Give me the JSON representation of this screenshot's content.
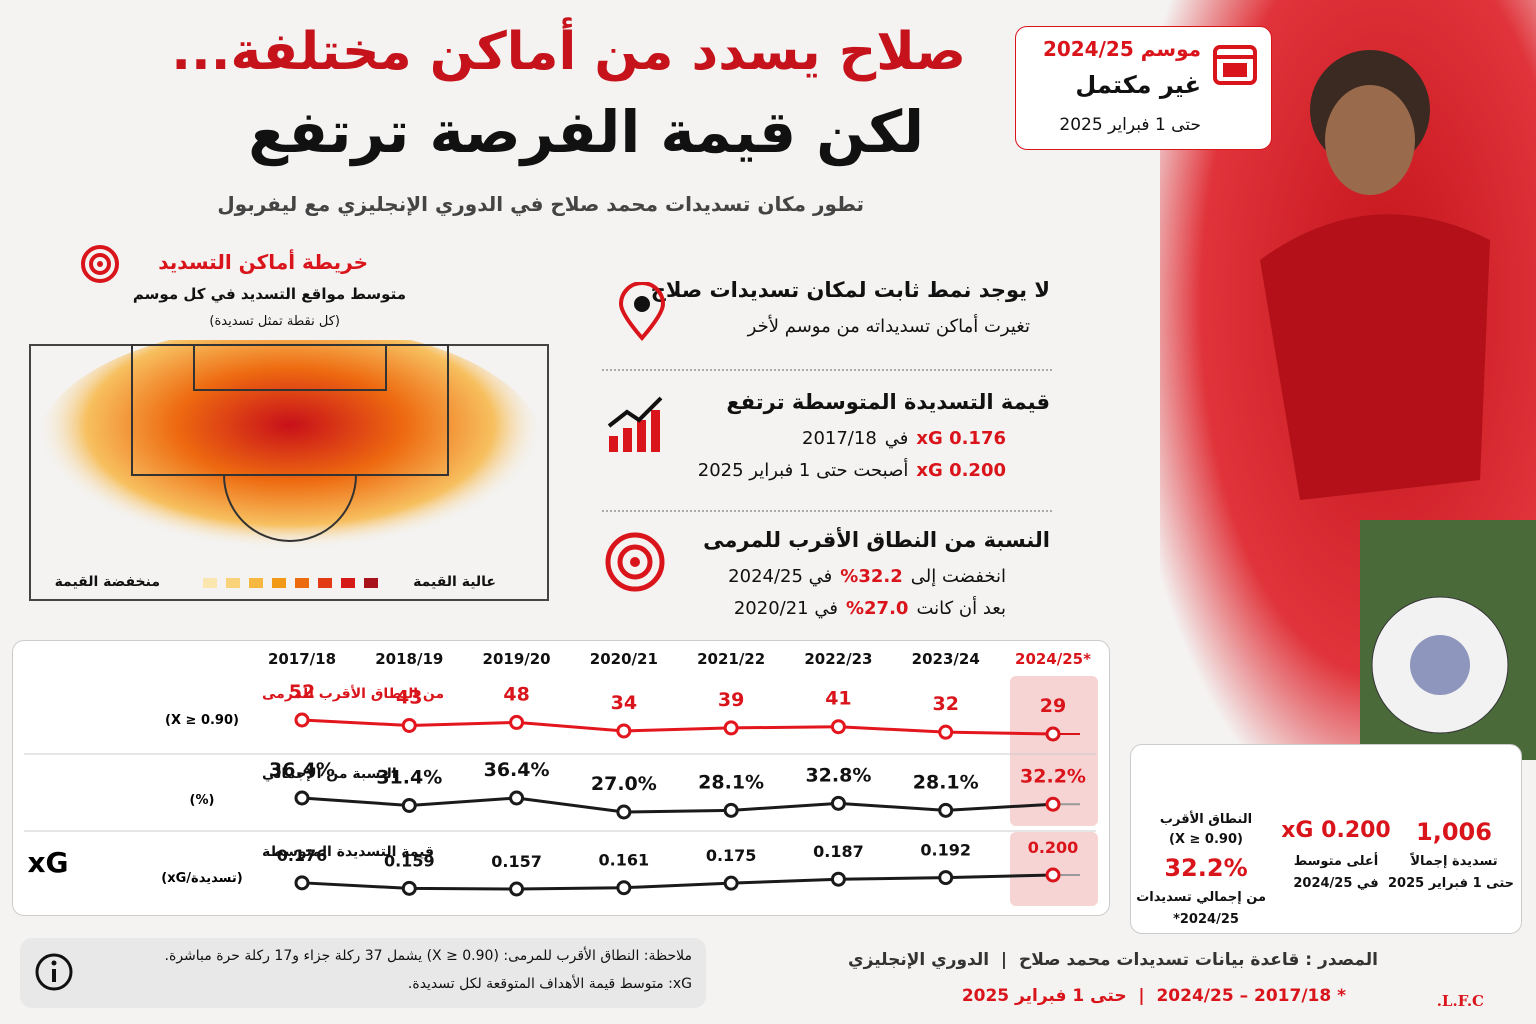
{
  "header": {
    "title_line1": "صلاح يسدد من أماكن مختلفة...",
    "title_line2": "لكن قيمة الفرصة ترتفع",
    "subtitle": "تطور مكان تسديدات محمد صلاح في الدوري الإنجليزي مع ليفربول"
  },
  "season_box": {
    "label": "موسم",
    "season": "2024/25",
    "status": "غير مكتمل",
    "until": "حتى 1 فبراير 2025"
  },
  "shot_map": {
    "title": "خريطة أماكن التسديد",
    "subtitle": "متوسط مواقع التسديد في كل موسم",
    "note": "(كل نقطة تمثل تسديدة)",
    "legend_high": "عالية القيمة",
    "legend_low": "منخفضة القيمة"
  },
  "insights": [
    {
      "title": "لا يوجد نمط ثابت لمكان تسديدات صلاح",
      "lines": [
        [
          {
            "text": "تغيرت أماكن تسديداته من موسم لأخر",
            "highlight": false
          }
        ]
      ]
    },
    {
      "title": "قيمة التسديدة المتوسطة ترتفع",
      "lines": [
        [
          {
            "text": "0.176 xG",
            "highlight": true
          },
          {
            "text": "في",
            "highlight": false
          },
          {
            "text": "2017/18",
            "highlight": false
          }
        ],
        [
          {
            "text": "0.200 xG",
            "highlight": true
          },
          {
            "text": "أصبحت حتى 1 فبراير 2025",
            "highlight": false
          }
        ]
      ]
    },
    {
      "title": "النسبة من النطاق الأقرب للمرمى",
      "lines": [
        [
          {
            "text": "انخفضت إلى",
            "highlight": false
          },
          {
            "text": "32.2%",
            "highlight": true
          },
          {
            "text": "في 2024/25",
            "highlight": false
          }
        ],
        [
          {
            "text": "بعد أن كانت",
            "highlight": false
          },
          {
            "text": "27.0%",
            "highlight": true
          },
          {
            "text": "في 2020/21",
            "highlight": false
          }
        ]
      ]
    }
  ],
  "chart_data": [
    {
      "type": "line",
      "title": "من النطاق الأقرب للمرمى",
      "subtitle": "(X ≥ 0.90)",
      "categories": [
        "2017/18",
        "2018/19",
        "2019/20",
        "2020/21",
        "2021/22",
        "2022/23",
        "2023/24",
        "2024/25*"
      ],
      "values": [
        52,
        43,
        48,
        34,
        39,
        41,
        32,
        29
      ],
      "color": "#e3161d"
    },
    {
      "type": "line",
      "title": "النسبة من الإجمالي",
      "subtitle": "(%)",
      "values": [
        36.4,
        31.4,
        36.4,
        27.0,
        28.1,
        32.8,
        28.1,
        32.2
      ],
      "value_labels": [
        "36.4%",
        "31.4%",
        "36.4%",
        "27.0%",
        "28.1%",
        "32.8%",
        "28.1%",
        "32.2%"
      ],
      "color": "#1a1a1a"
    },
    {
      "type": "line",
      "title": "قيمة التسديدة المتوسطة",
      "subtitle": "(xG/تسديدة)",
      "icon_text": "xG",
      "values": [
        0.176,
        0.159,
        0.157,
        0.161,
        0.175,
        0.187,
        0.192,
        0.2
      ],
      "value_labels": [
        "0.176",
        "0.159",
        "0.157",
        "0.161",
        "0.175",
        "0.187",
        "0.192",
        "0.200"
      ],
      "color": "#1a1a1a"
    }
  ],
  "stats": [
    {
      "value": "1,006",
      "lines": [
        "تسديدة إجمالاً",
        "حتى 1 فبراير 2025"
      ]
    },
    {
      "value": "0.200 xG",
      "lines": [
        "أعلى متوسط",
        "في 2024/25"
      ]
    },
    {
      "value": "32.2%",
      "heading": [
        "النطاق الأقرب",
        "(X ≥ 0.90)"
      ],
      "lines": [
        "من إجمالي تسديدات",
        "2024/25*"
      ]
    }
  ],
  "footer": {
    "note_lines": [
      "ملاحظة: النطاق الأقرب للمرمى: (X ≥ 0.90) يشمل 37 ركلة جزاء و17 ركلة حرة مباشرة.",
      "xG: متوسط قيمة الأهداف المتوقعة لكل تسديدة."
    ],
    "source": "المصدر : قاعدة بيانات تسديدات محمد صلاح",
    "league": "الدوري الإنجليزي",
    "period": "* 2017/18 – 2024/25",
    "until": "حتى 1 فبراير 2025",
    "logo": "L.F.C."
  }
}
